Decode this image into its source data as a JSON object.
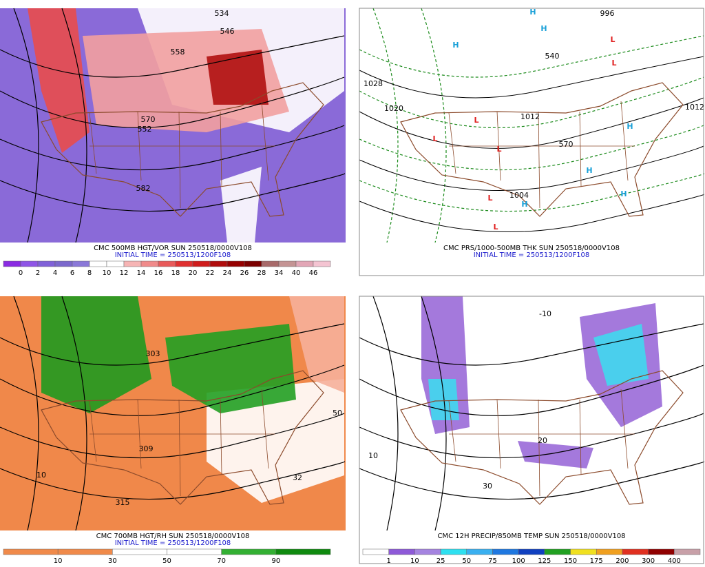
{
  "panels": [
    {
      "title": "CMC 500MB HGT/VOR SUN 250518/0000V108",
      "subtitle": "INITIAL TIME = 250513/1200F108",
      "colorbar": {
        "labels": [
          0,
          2,
          4,
          6,
          8,
          10,
          12,
          14,
          16,
          18,
          20,
          22,
          24,
          26,
          28,
          34,
          40,
          46
        ],
        "colors": [
          "#8a2be2",
          "#8f55e6",
          "#8061d8",
          "#7b68cc",
          "#8a78d8",
          "#ffffff",
          "#ffffff",
          "#f6b4b4",
          "#f08a8a",
          "#e85a5a",
          "#e03030",
          "#d01c1c",
          "#b00c0c",
          "#960000",
          "#7c0000",
          "#a86a6a",
          "#c49494",
          "#e2a6b6",
          "#f4c4d2"
        ]
      },
      "map_labels": [
        "534",
        "546",
        "558",
        "552",
        "570",
        "582"
      ]
    },
    {
      "title": "CMC PRS/1000-500MB THK SUN 250518/0000V108",
      "subtitle": "INITIAL TIME = 250513/1200F108",
      "map_labels": [
        "H",
        "H",
        "H",
        "H",
        "H",
        "H",
        "H",
        "L",
        "L",
        "L",
        "L",
        "L",
        "L",
        "L",
        "1028",
        "1020",
        "1004",
        "1012",
        "996",
        "1012",
        "540",
        "570"
      ]
    },
    {
      "title": "CMC 700MB HGT/RH SUN 250518/0000V108",
      "subtitle": "INITIAL TIME = 250513/1200F108",
      "colorbar": {
        "labels": [
          10,
          30,
          50,
          70,
          90
        ],
        "colors": [
          "#f08a4a",
          "#f08a4a",
          "#ffffff",
          "#ffffff",
          "#33b033",
          "#0f8a0f"
        ]
      },
      "map_labels": [
        "303",
        "309",
        "315",
        "50",
        "10",
        "32"
      ]
    },
    {
      "title": "CMC 12H PRECIP/850MB TEMP SUN 250518/0000V108",
      "colorbar": {
        "labels": [
          1,
          10,
          25,
          50,
          75,
          100,
          125,
          150,
          175,
          200,
          300,
          400
        ],
        "colors": [
          "#ffffff",
          "#8e5ad8",
          "#a584e0",
          "#2ee0f0",
          "#3ab0f0",
          "#1f78e0",
          "#1040c0",
          "#21a021",
          "#f0e020",
          "#f0a020",
          "#e03020",
          "#900000",
          "#c8a0a8"
        ]
      },
      "map_labels": [
        "10",
        "20",
        "30",
        "-10"
      ]
    }
  ]
}
